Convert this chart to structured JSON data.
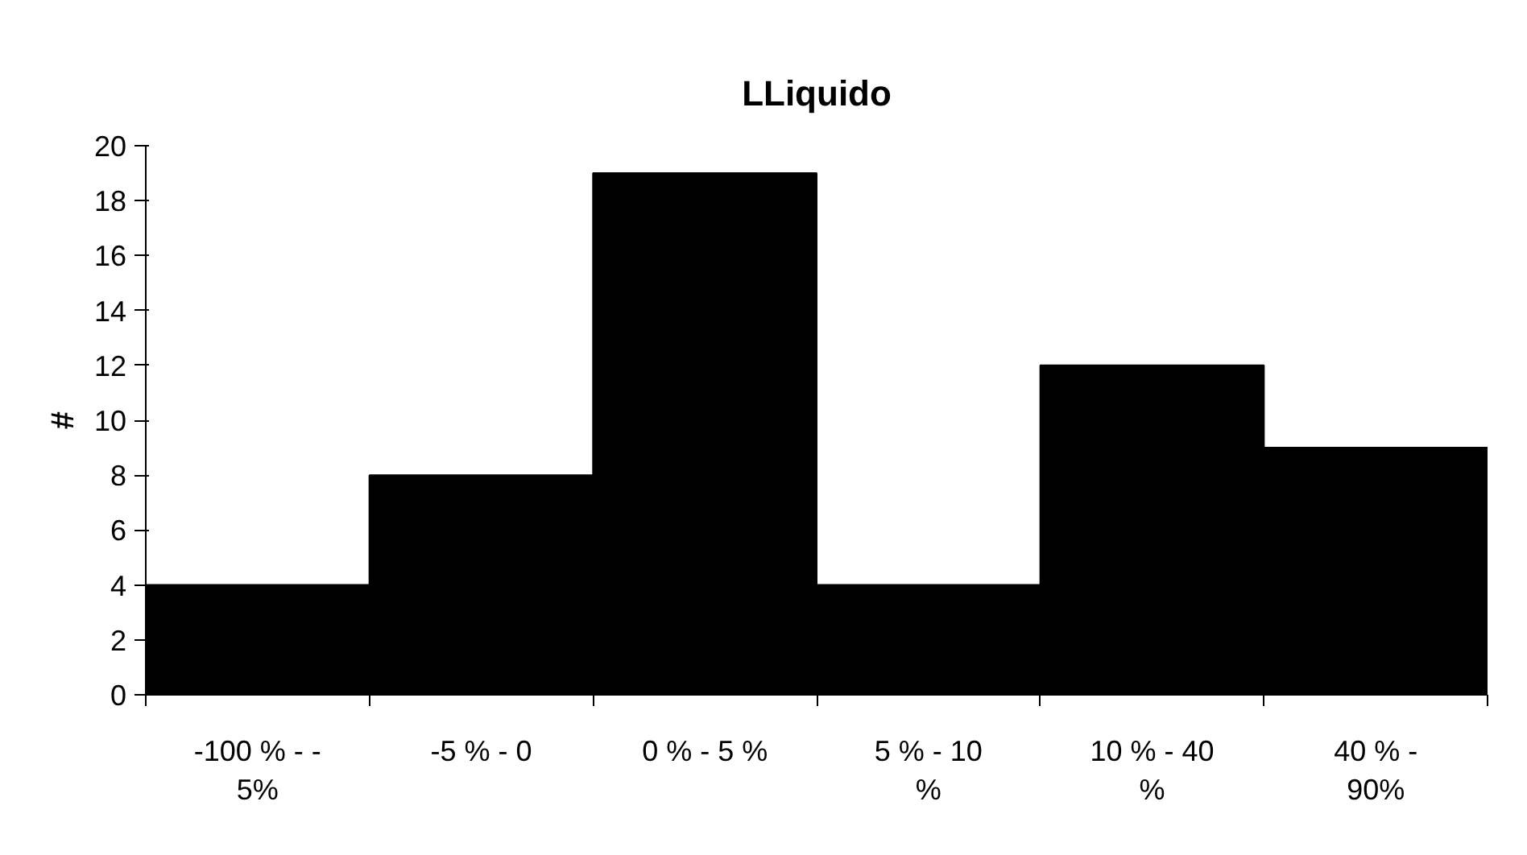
{
  "chart_data": {
    "type": "bar",
    "title": "LLiquido",
    "ylabel": "#",
    "categories": [
      "-100 % - -\n5%",
      "-5 % - 0",
      "0 % - 5 %",
      "5 % - 10\n%",
      "10 % - 40\n%",
      "40 % -\n90%"
    ],
    "values": [
      4,
      8,
      19,
      4,
      12,
      9
    ],
    "color": "#000000",
    "ylim": [
      0,
      20
    ],
    "yticks": [
      0,
      2,
      4,
      6,
      8,
      10,
      12,
      14,
      16,
      18,
      20
    ],
    "grid": false
  }
}
